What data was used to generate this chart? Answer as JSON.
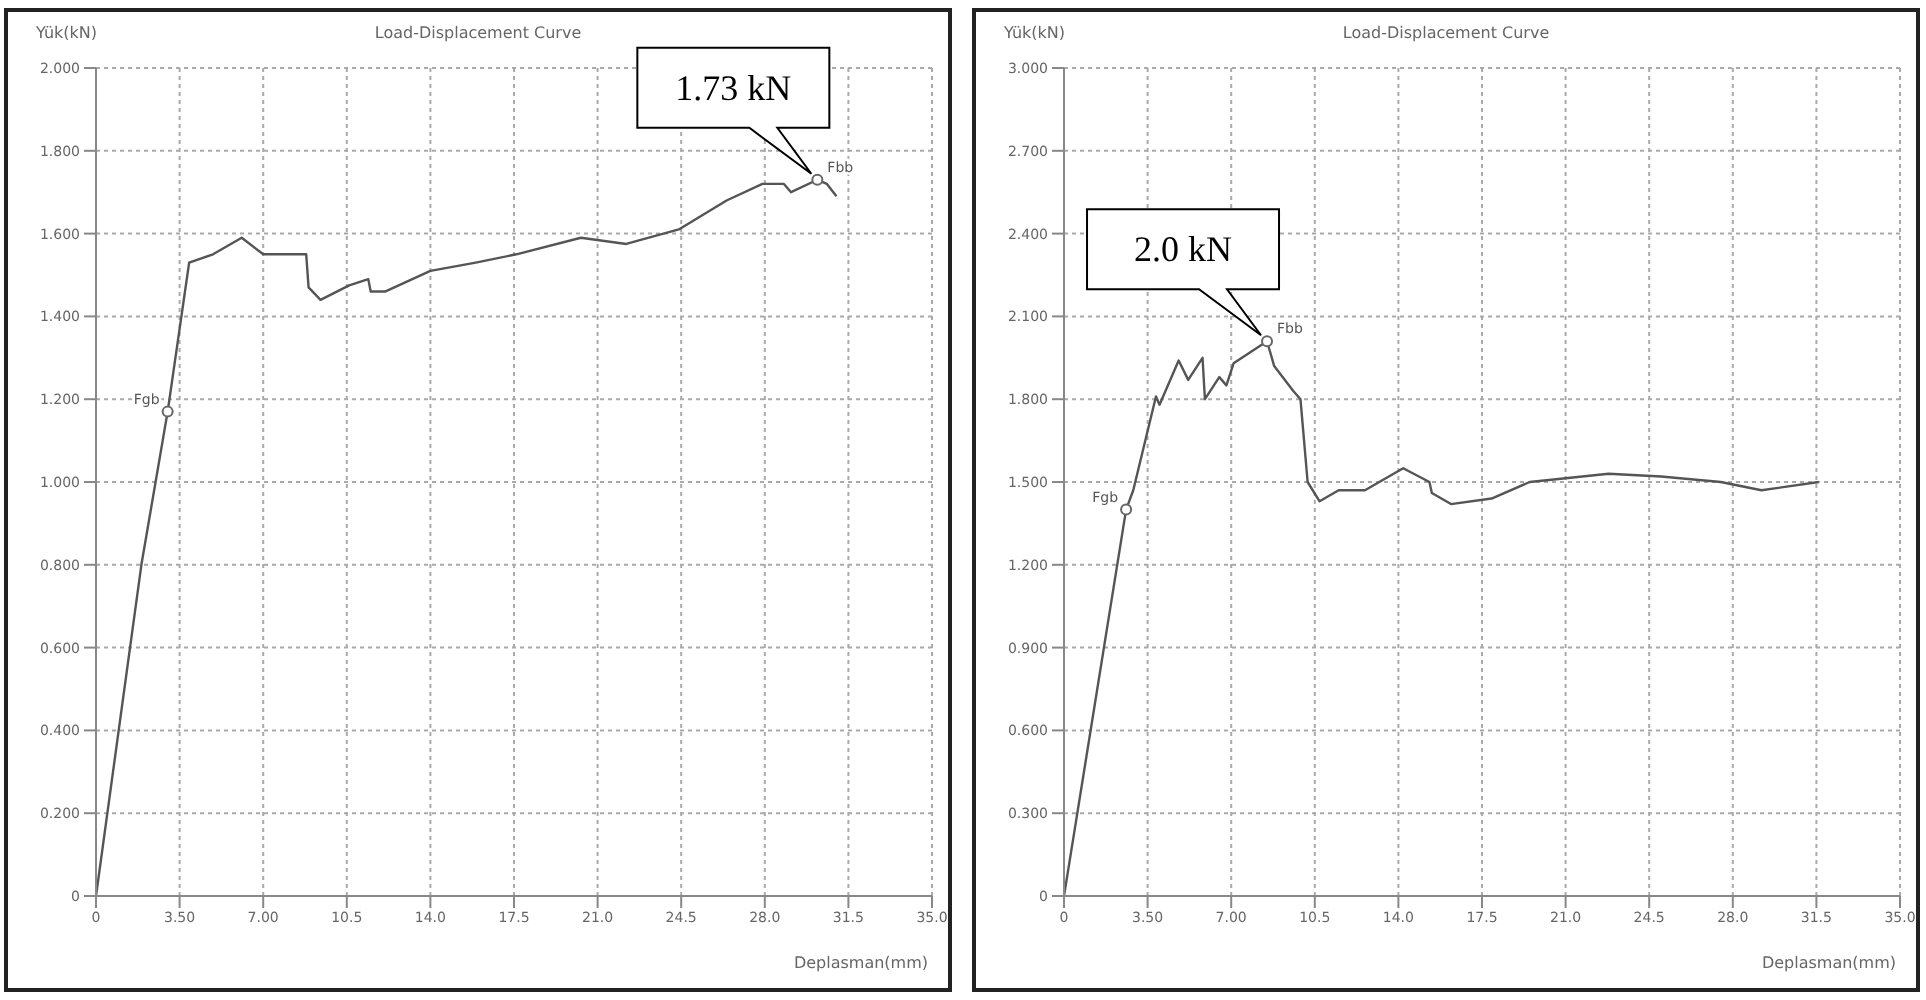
{
  "chart_data": [
    {
      "type": "line",
      "title": "Load-Displacement Curve",
      "ylabel": "Yük(kN)",
      "xlabel": "Deplasman(mm)",
      "grid": true,
      "line_style": "solid",
      "color": "#555555",
      "x": [
        0,
        1.9,
        3.0,
        3.9,
        4.9,
        6.1,
        7.0,
        8.8,
        8.9,
        9.4,
        10.6,
        11.4,
        11.5,
        12.1,
        14.0,
        15.9,
        17.6,
        20.3,
        22.2,
        24.4,
        26.4,
        27.9,
        28.8,
        29.1,
        30.2,
        30.6,
        31.0
      ],
      "values": [
        0,
        0.8,
        1.17,
        1.53,
        1.55,
        1.59,
        1.55,
        1.55,
        1.47,
        1.44,
        1.475,
        1.49,
        1.46,
        1.46,
        1.51,
        1.53,
        1.55,
        1.59,
        1.575,
        1.61,
        1.68,
        1.72,
        1.72,
        1.7,
        1.73,
        1.72,
        1.69
      ],
      "xlim": [
        0,
        35
      ],
      "xticks": [
        0,
        {
          "value": 3.5,
          "label": "3.50"
        },
        {
          "value": 7,
          "label": "7.00"
        },
        10.5,
        {
          "value": 14,
          "label": "14.0"
        },
        17.5,
        {
          "value": 21,
          "label": "21.0"
        },
        24.5,
        {
          "value": 28,
          "label": "28.0"
        },
        31.5,
        {
          "value": 35,
          "label": "35.0"
        }
      ],
      "ylim": [
        0,
        2
      ],
      "yticks": [
        0,
        {
          "value": 0.2,
          "label": "0.200"
        },
        {
          "value": 0.4,
          "label": "0.400"
        },
        {
          "value": 0.6,
          "label": "0.600"
        },
        {
          "value": 0.8,
          "label": "0.800"
        },
        {
          "value": 1,
          "label": "1.000"
        },
        {
          "value": 1.2,
          "label": "1.200"
        },
        {
          "value": 1.4,
          "label": "1.400"
        },
        {
          "value": 1.6,
          "label": "1.600"
        },
        {
          "value": 1.8,
          "label": "1.800"
        },
        {
          "value": 2,
          "label": "2.000"
        }
      ],
      "annotations": [
        {
          "text": "Fgb",
          "x": 3.0,
          "y": 1.17
        },
        {
          "text": "Fbb",
          "x": 30.2,
          "y": 1.73
        },
        {
          "text": "1.73 kN",
          "x": 30.2,
          "y": 1.73
        }
      ]
    },
    {
      "type": "line",
      "title": "Load-Displacement Curve",
      "ylabel": "Yük(kN)",
      "xlabel": "Deplasman(mm)",
      "grid": true,
      "line_style": "solid",
      "color": "#555555",
      "x": [
        0,
        2.6,
        2.9,
        3.85,
        4.0,
        4.8,
        5.2,
        5.8,
        5.9,
        6.5,
        6.8,
        7.1,
        8.5,
        8.8,
        9.6,
        9.9,
        10.2,
        10.7,
        11.5,
        12.6,
        14.2,
        15.3,
        15.4,
        16.2,
        17.9,
        19.5,
        22.8,
        25.0,
        27.5,
        29.2,
        31.6
      ],
      "values": [
        0,
        1.4,
        1.47,
        1.81,
        1.78,
        1.94,
        1.87,
        1.95,
        1.8,
        1.88,
        1.85,
        1.93,
        2.01,
        1.92,
        1.83,
        1.8,
        1.5,
        1.43,
        1.47,
        1.47,
        1.55,
        1.5,
        1.46,
        1.42,
        1.44,
        1.5,
        1.53,
        1.52,
        1.5,
        1.47,
        1.5
      ],
      "xlim": [
        0,
        35
      ],
      "xticks": [
        0,
        {
          "value": 3.5,
          "label": "3.50"
        },
        {
          "value": 7,
          "label": "7.00"
        },
        10.5,
        {
          "value": 14,
          "label": "14.0"
        },
        17.5,
        {
          "value": 21,
          "label": "21.0"
        },
        24.5,
        {
          "value": 28,
          "label": "28.0"
        },
        31.5,
        {
          "value": 35,
          "label": "35.0"
        }
      ],
      "ylim": [
        0,
        3
      ],
      "yticks": [
        0,
        {
          "value": 0.3,
          "label": "0.300"
        },
        {
          "value": 0.6,
          "label": "0.600"
        },
        {
          "value": 0.9,
          "label": "0.900"
        },
        {
          "value": 1.2,
          "label": "1.200"
        },
        {
          "value": 1.5,
          "label": "1.500"
        },
        {
          "value": 1.8,
          "label": "1.800"
        },
        {
          "value": 2.1,
          "label": "2.100"
        },
        {
          "value": 2.4,
          "label": "2.400"
        },
        {
          "value": 2.7,
          "label": "2.700"
        },
        {
          "value": 3,
          "label": "3.000"
        }
      ],
      "annotations": [
        {
          "text": "Fgb",
          "x": 2.6,
          "y": 1.4
        },
        {
          "text": "Fbb",
          "x": 8.5,
          "y": 2.01
        },
        {
          "text": "2.0 kN",
          "x": 8.5,
          "y": 2.01
        }
      ]
    }
  ]
}
